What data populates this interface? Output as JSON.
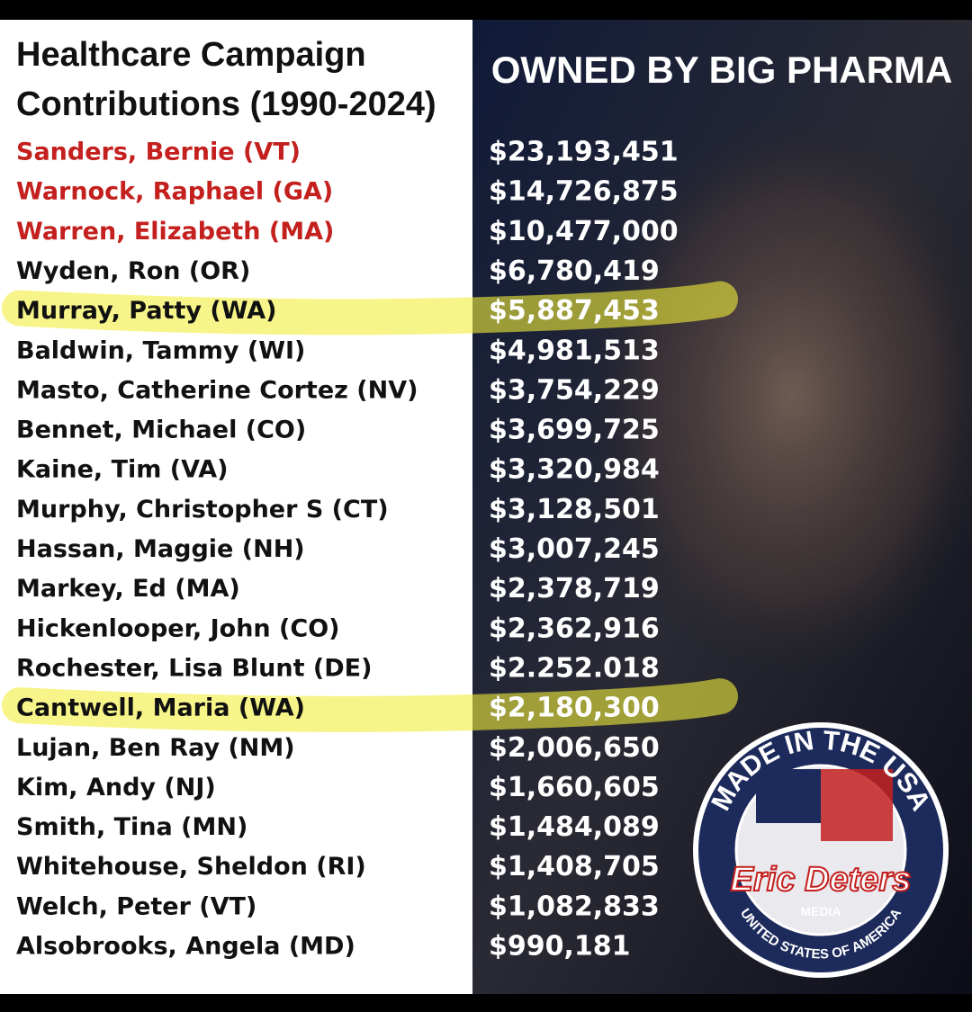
{
  "title": [
    "Healthcare Campaign",
    "Contributions (1990-2024)"
  ],
  "header": "OWNED BY BIG PHARMA",
  "rows": [
    {
      "name": "Sanders, Bernie (VT)",
      "amount": "$23,193,451",
      "color": "#c3201e"
    },
    {
      "name": "Warnock, Raphael (GA)",
      "amount": "$14,726,875",
      "color": "#c3201e"
    },
    {
      "name": "Warren, Elizabeth (MA)",
      "amount": "$10,477,000",
      "color": "#c3201e"
    },
    {
      "name": "Wyden, Ron (OR)",
      "amount": "$6,780,419",
      "color": "#111111"
    },
    {
      "name": "Murray, Patty (WA)",
      "amount": "$5,887,453",
      "color": "#111111",
      "highlighted": true
    },
    {
      "name": "Baldwin, Tammy (WI)",
      "amount": "$4,981,513",
      "color": "#111111"
    },
    {
      "name": "Masto, Catherine Cortez (NV)",
      "amount": "$3,754,229",
      "color": "#111111"
    },
    {
      "name": "Bennet, Michael (CO)",
      "amount": "$3,699,725",
      "color": "#111111"
    },
    {
      "name": "Kaine, Tim (VA)",
      "amount": "$3,320,984",
      "color": "#111111"
    },
    {
      "name": "Murphy, Christopher S (CT)",
      "amount": "$3,128,501",
      "color": "#111111"
    },
    {
      "name": "Hassan, Maggie (NH)",
      "amount": "$3,007,245",
      "color": "#111111"
    },
    {
      "name": "Markey, Ed (MA)",
      "amount": "$2,378,719",
      "color": "#111111"
    },
    {
      "name": "Hickenlooper, John (CO)",
      "amount": "$2,362,916",
      "color": "#111111"
    },
    {
      "name": "Rochester, Lisa Blunt (DE)",
      "amount": "$2.252.018",
      "color": "#111111"
    },
    {
      "name": "Cantwell, Maria (WA)",
      "amount": "$2,180,300",
      "color": "#111111",
      "highlighted": true
    },
    {
      "name": "Lujan, Ben Ray (NM)",
      "amount": "$2,006,650",
      "color": "#111111"
    },
    {
      "name": "Kim, Andy (NJ)",
      "amount": "$1,660,605",
      "color": "#111111"
    },
    {
      "name": "Smith, Tina (MN)",
      "amount": "$1,484,089",
      "color": "#111111"
    },
    {
      "name": "Whitehouse, Sheldon (RI)",
      "amount": "$1,408,705",
      "color": "#111111"
    },
    {
      "name": "Welch, Peter (VT)",
      "amount": "$1,082,833",
      "color": "#111111"
    },
    {
      "name": "Alsobrooks, Angela (MD)",
      "amount": "$990,181",
      "color": "#111111"
    }
  ],
  "logo": {
    "top": "MADE IN THE USA",
    "brand": "Eric Deters",
    "sub": "MEDIA",
    "bottom": "UNITED STATES OF AMERICA"
  }
}
